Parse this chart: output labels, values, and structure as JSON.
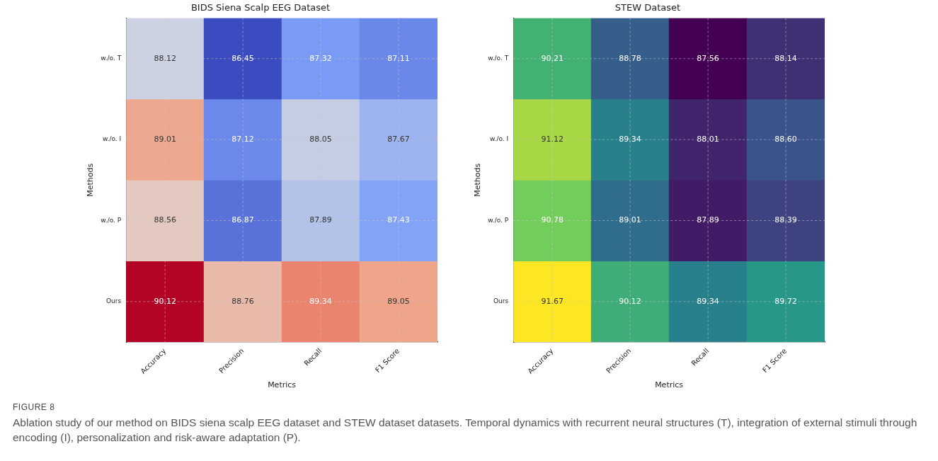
{
  "chart_data": [
    {
      "type": "heatmap",
      "title": "BIDS Siena Scalp EEG Dataset",
      "xlabel": "Metrics",
      "ylabel": "Methods",
      "grid": true,
      "categories": [
        "Accuracy",
        "Precision",
        "Recall",
        "F1 Score"
      ],
      "y_categories": [
        "w./o. T",
        "w./o. I",
        "w./o. P",
        "Ours"
      ],
      "cells": [
        [
          88.12,
          86.45,
          87.32,
          87.11
        ],
        [
          89.01,
          87.12,
          88.05,
          87.67
        ],
        [
          88.56,
          86.87,
          87.89,
          87.43
        ],
        [
          90.12,
          88.76,
          89.34,
          89.05
        ]
      ],
      "cell_labels": [
        [
          "88.12",
          "86.45",
          "87.32",
          "87.11"
        ],
        [
          "89.01",
          "87.12",
          "88.05",
          "87.67"
        ],
        [
          "88.56",
          "86.87",
          "87.89",
          "87.43"
        ],
        [
          "90.12",
          "88.76",
          "89.34",
          "89.05"
        ]
      ],
      "annotations": [
        "FIGURE 8",
        "Ablation study of our method on BIDS siena scalp EEG dataset and STEW dataset datasets. Temporal dynamics with recurrent neural structures (T), integration of external stimuli through encoding (I), personalization and risk-aware adaptation (P)."
      ]
    },
    {
      "type": "heatmap",
      "title": "STEW Dataset",
      "xlabel": "Metrics",
      "ylabel": "Methods",
      "grid": true,
      "categories": [
        "Accuracy",
        "Precision",
        "Recall",
        "F1 Score"
      ],
      "y_categories": [
        "w./o. T",
        "w./o. I",
        "w./o. P",
        "Ours"
      ],
      "cells": [
        [
          90.21,
          88.78,
          87.56,
          88.14
        ],
        [
          91.12,
          89.34,
          88.01,
          88.6
        ],
        [
          90.78,
          89.01,
          87.89,
          88.39
        ],
        [
          91.67,
          90.12,
          89.34,
          89.72
        ]
      ],
      "cell_labels": [
        [
          "90.21",
          "88.78",
          "87.56",
          "88.14"
        ],
        [
          "91.12",
          "89.34",
          "88.01",
          "88.60"
        ],
        [
          "90.78",
          "89.01",
          "87.89",
          "88.39"
        ],
        [
          "91.67",
          "90.12",
          "89.34",
          "89.72"
        ]
      ]
    }
  ]
}
